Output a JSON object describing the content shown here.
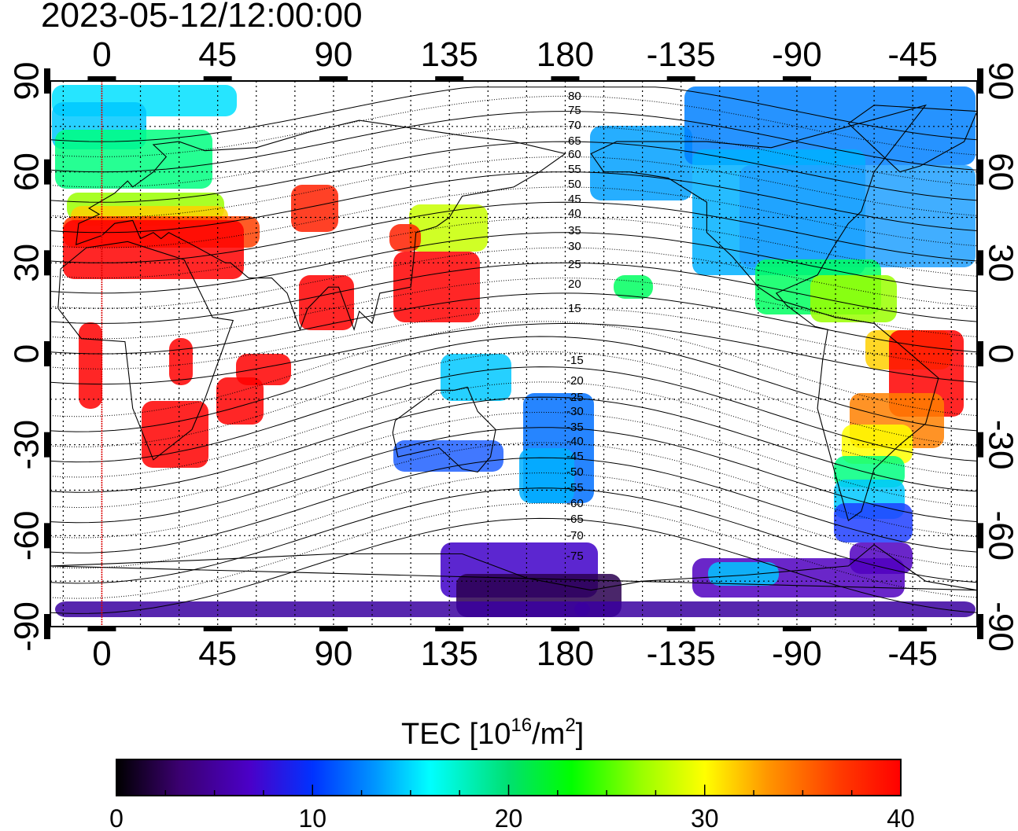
{
  "timestamp": "2023-05-12/12:00:00",
  "axes": {
    "top_lon_labels": [
      "0",
      "45",
      "90",
      "135",
      "180",
      "-135",
      "-90",
      "-45"
    ],
    "bottom_lon_labels": [
      "0",
      "45",
      "90",
      "135",
      "180",
      "-135",
      "-90",
      "-45"
    ],
    "left_lat_labels": [
      "90",
      "60",
      "30",
      "0",
      "-30",
      "-60",
      "-90"
    ],
    "right_lat_labels": [
      "90",
      "60",
      "30",
      "0",
      "-30",
      "-60",
      "-90"
    ]
  },
  "contour_labels": {
    "north": [
      "80",
      "75",
      "70",
      "65",
      "60",
      "55",
      "50",
      "45",
      "40",
      "35",
      "30",
      "25",
      "20",
      "15"
    ],
    "south": [
      "-15",
      "-20",
      "-25",
      "-30",
      "-35",
      "-40",
      "-45",
      "-50",
      "-55",
      "-60",
      "-65",
      "-70",
      "-75"
    ]
  },
  "colorbar": {
    "title_prefix": "TEC  [10",
    "title_sup1": "16",
    "title_mid": "/m",
    "title_sup2": "2",
    "title_suffix": "]",
    "tick_labels": [
      "0",
      "10",
      "20",
      "30",
      "40"
    ],
    "min": 0,
    "max": 40,
    "stops": [
      "#000000",
      "#3b0070",
      "#4b00c8",
      "#0032ff",
      "#0096ff",
      "#00ffff",
      "#00e070",
      "#00ff00",
      "#9aff00",
      "#ffff00",
      "#ff9600",
      "#ff3c00",
      "#ff0000"
    ]
  },
  "map": {
    "lon_start": -20,
    "lon_end": 340,
    "lat_range": [
      -90,
      90
    ],
    "marker_longitude": 0
  }
}
